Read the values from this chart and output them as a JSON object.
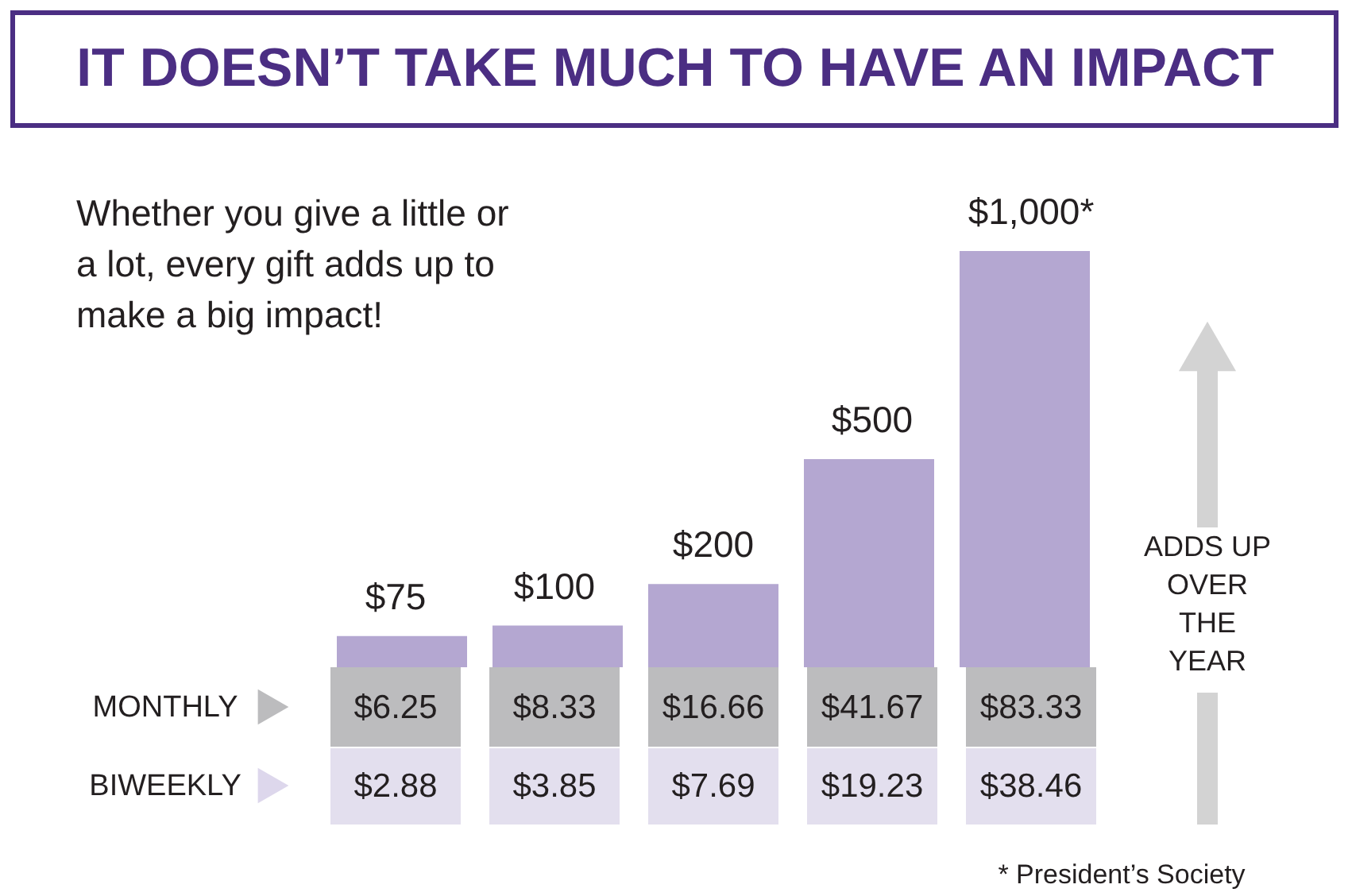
{
  "chart_data": {
    "type": "bar",
    "title": "IT DOESN’T TAKE MUCH TO HAVE AN IMPACT",
    "subtitle": "Whether you give a little or a lot, every gift adds up to make a big impact!",
    "categories": [
      null,
      null,
      null,
      null,
      null
    ],
    "values": [
      75,
      100,
      200,
      500,
      1000
    ],
    "value_labels": [
      "$75",
      "$100",
      "$200",
      "$500",
      "$1,000*"
    ],
    "color": "#b4a7d1",
    "annotations": [
      "MONTHLY",
      "$6.25",
      "$8.33",
      "$16.66",
      "$41.67",
      "$83.33",
      "BIWEEKLY",
      "$2.88",
      "$3.85",
      "$7.69",
      "$19.23",
      "$38.46",
      "ADDS UP OVER THE YEAR",
      "* President’s Society"
    ]
  }
}
